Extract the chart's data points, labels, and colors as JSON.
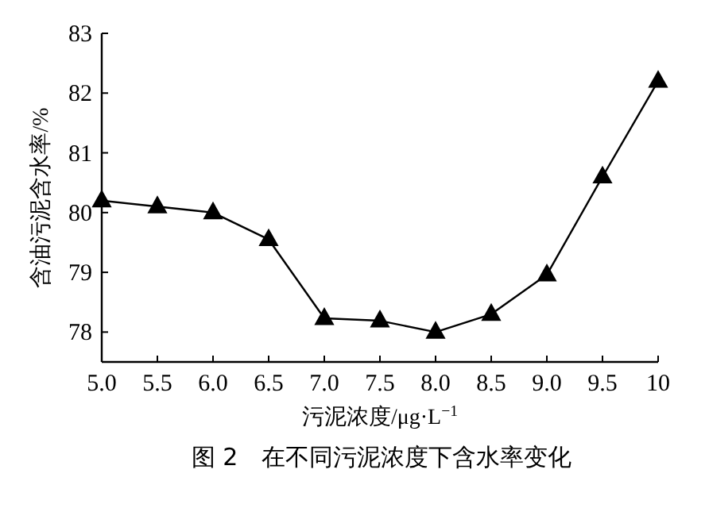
{
  "chart_data": {
    "type": "line",
    "title": "图 2　在不同污泥浓度下含水率变化",
    "xlabel": "污泥浓度/μg·L$^{−1}$",
    "ylabel": "含油污泥含水率/%",
    "x": [
      5.0,
      5.5,
      6.0,
      6.5,
      7.0,
      7.5,
      8.0,
      8.5,
      9.0,
      9.5,
      10
    ],
    "series": [
      {
        "color": "#000000",
        "values": [
          80.2,
          80.1,
          80.0,
          79.55,
          78.23,
          78.19,
          78.0,
          78.3,
          78.96,
          80.6,
          82.2
        ]
      }
    ],
    "xlim": [
      5,
      10
    ],
    "ylim": [
      77.5,
      83
    ],
    "xticks": [
      {
        "value": 5,
        "label": "5.0"
      },
      {
        "value": 5.5,
        "label": "5.5"
      },
      {
        "value": 6,
        "label": "6.0"
      },
      {
        "value": 6.5,
        "label": "6.5"
      },
      {
        "value": 7,
        "label": "7.0"
      },
      {
        "value": 7.5,
        "label": "7.5"
      },
      {
        "value": 8,
        "label": "8.0"
      },
      {
        "value": 8.5,
        "label": "8.5"
      },
      {
        "value": 9,
        "label": "9.0"
      },
      {
        "value": 9.5,
        "label": "9.5"
      },
      10
    ],
    "yticks": [
      78,
      79,
      80,
      81,
      82,
      83
    ],
    "marker": "triangle",
    "line_style": "solid",
    "grid": false
  }
}
